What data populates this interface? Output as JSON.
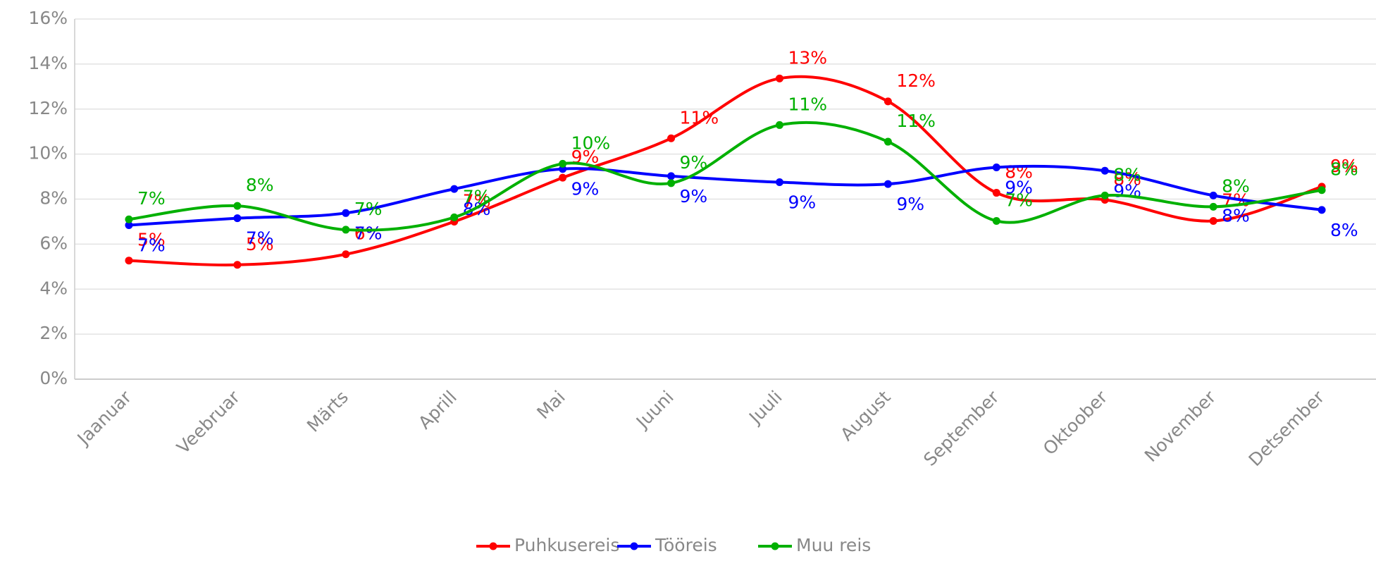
{
  "chart_data": {
    "type": "line",
    "categories": [
      "Jaanuar",
      "Veebruar",
      "Märts",
      "Aprill",
      "Mai",
      "Juuni",
      "Juuli",
      "August",
      "September",
      "Oktoober",
      "November",
      "Detsember"
    ],
    "series": [
      {
        "name": "Puhkusereis",
        "color": "#ff0000",
        "values": [
          5.27,
          5.08,
          5.55,
          7.0,
          8.95,
          10.7,
          13.36,
          12.34,
          8.28,
          7.97,
          7.03,
          8.55
        ],
        "value_labels": [
          "5%",
          "5%",
          "6%",
          "7%",
          "9%",
          "11%",
          "13%",
          "12%",
          "8%",
          "8%",
          "7%",
          "9%"
        ]
      },
      {
        "name": "Tööreis",
        "color": "#0000ff",
        "values": [
          6.84,
          7.15,
          7.38,
          8.45,
          9.34,
          9.02,
          8.75,
          8.67,
          9.41,
          9.26,
          8.16,
          7.52
        ],
        "value_labels": [
          "7%",
          "7%",
          "7%",
          "8%",
          "9%",
          "9%",
          "9%",
          "9%",
          "9%",
          "9%",
          "8%",
          "8%"
        ]
      },
      {
        "name": "Muu reis",
        "color": "#00b000",
        "values": [
          7.1,
          7.7,
          6.64,
          7.19,
          9.57,
          8.71,
          11.29,
          10.55,
          7.03,
          8.16,
          7.66,
          8.4
        ],
        "value_labels": [
          "7%",
          "8%",
          "7%",
          "7%",
          "10%",
          "9%",
          "11%",
          "11%",
          "7%",
          "8%",
          "8%",
          "8%"
        ]
      }
    ],
    "ylim": [
      0,
      16
    ],
    "yticks": [
      {
        "value": 0,
        "label": "0%"
      },
      {
        "value": 2,
        "label": "2%"
      },
      {
        "value": 4,
        "label": "4%"
      },
      {
        "value": 6,
        "label": "6%"
      },
      {
        "value": 8,
        "label": "8%"
      },
      {
        "value": 10,
        "label": "10%"
      },
      {
        "value": 12,
        "label": "12%"
      },
      {
        "value": 14,
        "label": "14%"
      },
      {
        "value": 16,
        "label": "16%"
      }
    ],
    "grid": true,
    "smooth": true,
    "legend": "bottom"
  }
}
